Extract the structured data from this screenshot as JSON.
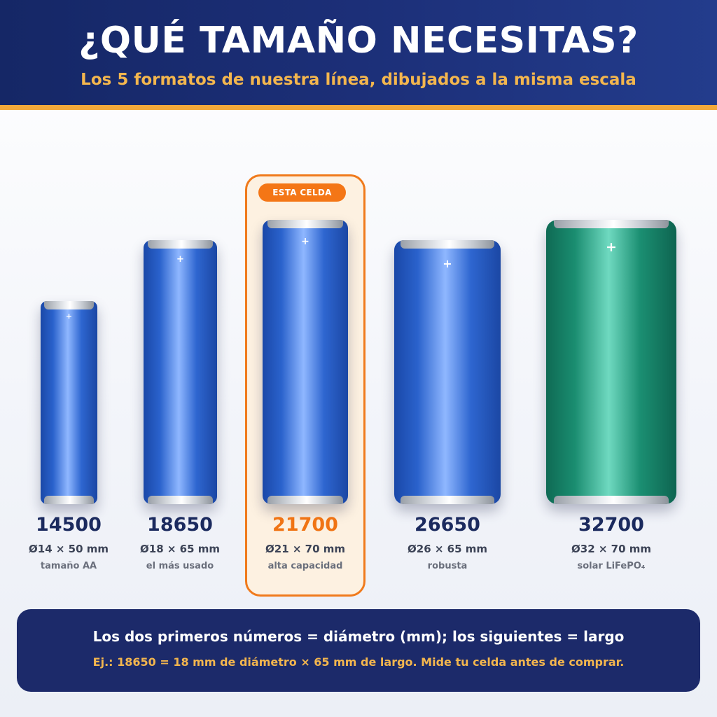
{
  "header": {
    "title": "¿QUÉ TAMAÑO NECESITAS?",
    "subtitle": "Los 5 formatos de nuestra línea, dibujados a la misma escala"
  },
  "highlight": {
    "badge": "ESTA CELDA"
  },
  "cells": [
    {
      "code": "14500",
      "dimensions": "Ø14 × 50 mm",
      "description": "tamaño AA",
      "color": "#2a62cc",
      "terminal": "+"
    },
    {
      "code": "18650",
      "dimensions": "Ø18 × 65 mm",
      "description": "el más usado",
      "color": "#2a62cc",
      "terminal": "+"
    },
    {
      "code": "21700",
      "dimensions": "Ø21 × 70 mm",
      "description": "alta capacidad",
      "color": "#2a62cc",
      "terminal": "+",
      "highlighted": true
    },
    {
      "code": "26650",
      "dimensions": "Ø26 × 65 mm",
      "description": "robusta",
      "color": "#2a62cc",
      "terminal": "+"
    },
    {
      "code": "32700",
      "dimensions": "Ø32 × 70 mm",
      "description": "solar LiFePO₄",
      "color": "#1a8d70",
      "terminal": "+"
    }
  ],
  "footer": {
    "main": "Los dos primeros números = diámetro (mm); los siguientes = largo",
    "example": "Ej.: 18650 = 18 mm de diámetro × 65 mm de largo. Mide tu celda antes de comprar."
  },
  "colors": {
    "header_bg": "#1c2f78",
    "accent_orange": "#f47616",
    "accent_gold": "#f3b64e",
    "battery_blue": "#2a62cc",
    "battery_green": "#1a8d70"
  }
}
